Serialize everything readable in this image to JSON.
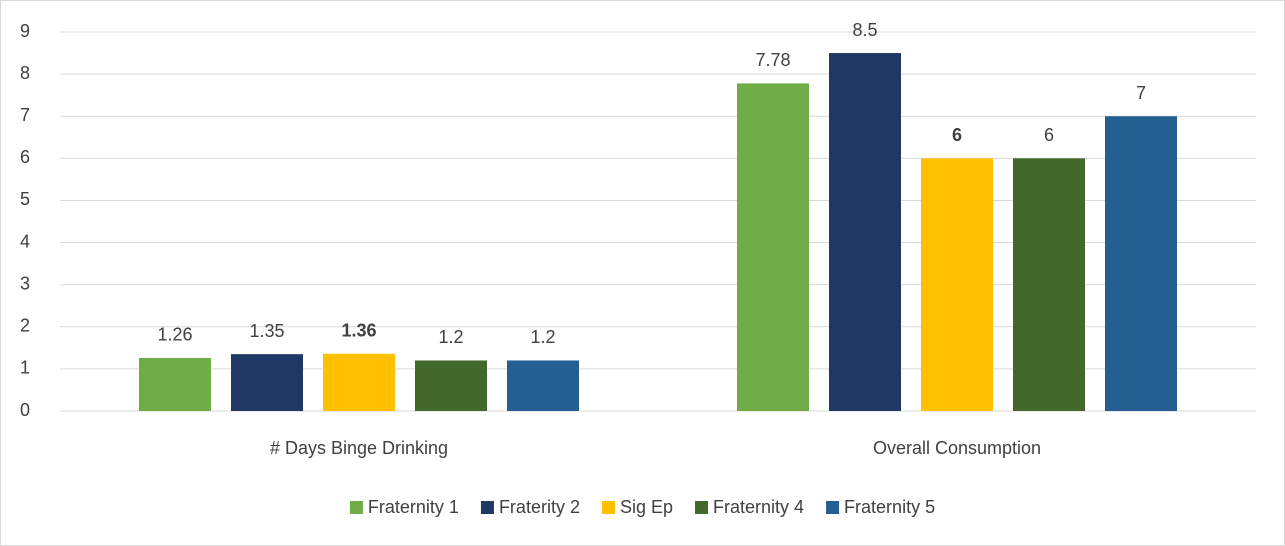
{
  "chart_data": {
    "type": "bar",
    "categories": [
      "# Days Binge Drinking",
      "Overall Consumption"
    ],
    "series": [
      {
        "name": "Fraternity 1",
        "color": "#70ad47",
        "values": [
          1.26,
          7.78
        ]
      },
      {
        "name": "Fraterity 2",
        "color": "#1f3864",
        "values": [
          1.35,
          8.5
        ]
      },
      {
        "name": "Sig Ep",
        "color": "#ffc000",
        "values": [
          1.36,
          6
        ],
        "label_weight": "bold"
      },
      {
        "name": "Fraternity 4",
        "color": "#43682b",
        "values": [
          1.2,
          6
        ]
      },
      {
        "name": "Fraternity 5",
        "color": "#255e91",
        "values": [
          1.2,
          7
        ]
      }
    ],
    "ylim": [
      0,
      9
    ],
    "yticks": [
      0,
      1,
      2,
      3,
      4,
      5,
      6,
      7,
      8,
      9
    ],
    "grid": true,
    "legend": "bottom",
    "data_labels": true
  }
}
